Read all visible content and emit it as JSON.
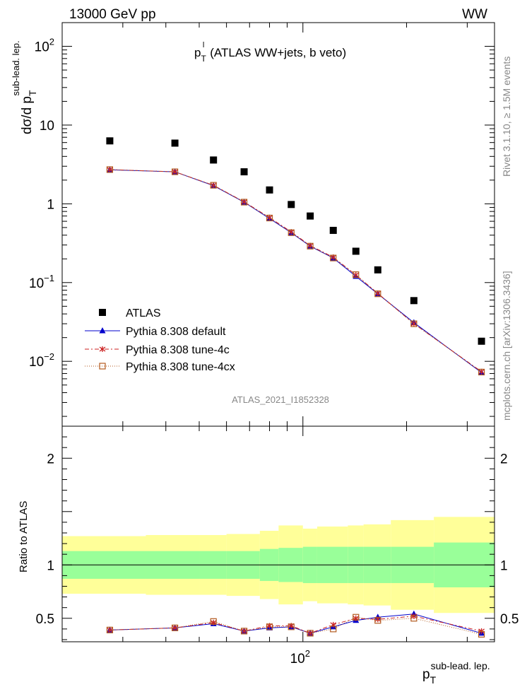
{
  "header": {
    "left": "13000 GeV pp",
    "right": "WW"
  },
  "side_labels": {
    "rivet": "Rivet 3.1.10, ≥ 1.5M events",
    "mcplots": "mcplots.cern.ch [arXiv:1306.3436]"
  },
  "plot_title": {
    "main": "p",
    "sub": "T",
    "sup": "l",
    "rest": "(ATLAS WW+jets, b veto)"
  },
  "analysis_id": "ATLAS_2021_I1852328",
  "y_axis": {
    "base": "dσ/d p",
    "sub": "T",
    "sup": "sub-lead. lep."
  },
  "x_axis": {
    "base": "p",
    "sub": "T",
    "sup": "sub-lead. lep."
  },
  "ratio_axis": {
    "label": "Ratio to ATLAS"
  },
  "main_ticks": [
    {
      "value": 100,
      "base": "10",
      "exp": "2"
    },
    {
      "value": 10,
      "base": "10",
      "exp": ""
    },
    {
      "value": 1,
      "base": "1",
      "exp": ""
    },
    {
      "value": 0.1,
      "base": "10",
      "exp": "−1"
    },
    {
      "value": 0.01,
      "base": "10",
      "exp": "−2"
    }
  ],
  "ratio_ticks": [
    {
      "value": 2,
      "label": "2"
    },
    {
      "value": 1,
      "label": "1"
    },
    {
      "value": 0.5,
      "label": "0.5"
    }
  ],
  "x_ticks": [
    {
      "value": 100,
      "base": "10",
      "exp": "2"
    }
  ],
  "legend": [
    {
      "label": "ATLAS",
      "color": "#000000",
      "marker": "square"
    },
    {
      "label": "Pythia 8.308 default",
      "color": "#0000cc",
      "marker": "triangle"
    },
    {
      "label": "Pythia 8.308 tune-4c",
      "color": "#cc2222",
      "marker": "star"
    },
    {
      "label": "Pythia 8.308 tune-4cx",
      "color": "#b35a1f",
      "marker": "opensquare"
    }
  ],
  "chart_data": {
    "type": "scatter",
    "x_scale": "log",
    "y_scale": "log",
    "xlim": [
      20,
      360
    ],
    "ylim": [
      0.0015,
      200
    ],
    "ratio_ylim": [
      0.28,
      2.3
    ],
    "x": [
      27.5,
      42.5,
      55,
      67.5,
      80,
      92.5,
      105,
      122.5,
      142.5,
      165,
      210,
      330
    ],
    "bin_edges": [
      20,
      35,
      50,
      60,
      75,
      85,
      100,
      110,
      135,
      150,
      180,
      240,
      420
    ],
    "series": [
      {
        "name": "ATLAS",
        "values": [
          6.3,
          5.9,
          3.6,
          2.55,
          1.5,
          0.98,
          0.7,
          0.46,
          0.25,
          0.145,
          0.059,
          0.018
        ]
      },
      {
        "name": "Pythia 8.308 default",
        "values": [
          2.7,
          2.55,
          1.7,
          1.05,
          0.65,
          0.43,
          0.29,
          0.205,
          0.12,
          0.072,
          0.031,
          0.0072
        ]
      },
      {
        "name": "Pythia 8.308 tune-4c",
        "values": [
          2.72,
          2.55,
          1.72,
          1.06,
          0.67,
          0.44,
          0.295,
          0.21,
          0.125,
          0.073,
          0.03,
          0.0074
        ]
      },
      {
        "name": "Pythia 8.308 tune-4cx",
        "values": [
          2.72,
          2.55,
          1.72,
          1.05,
          0.66,
          0.43,
          0.29,
          0.205,
          0.126,
          0.072,
          0.03,
          0.0073
        ]
      }
    ],
    "ratio_series": [
      {
        "name": "Pythia 8.308 default",
        "values": [
          0.39,
          0.41,
          0.45,
          0.38,
          0.41,
          0.42,
          0.36,
          0.42,
          0.48,
          0.51,
          0.54,
          0.36
        ]
      },
      {
        "name": "Pythia 8.308 tune-4c",
        "values": [
          0.39,
          0.41,
          0.46,
          0.38,
          0.43,
          0.43,
          0.36,
          0.44,
          0.5,
          0.49,
          0.52,
          0.38
        ]
      },
      {
        "name": "Pythia 8.308 tune-4cx",
        "values": [
          0.39,
          0.41,
          0.47,
          0.38,
          0.42,
          0.42,
          0.36,
          0.4,
          0.51,
          0.48,
          0.5,
          0.35
        ]
      }
    ],
    "band_inner": [
      0.13,
      0.13,
      0.13,
      0.13,
      0.15,
      0.16,
      0.17,
      0.17,
      0.17,
      0.17,
      0.17,
      0.21
    ],
    "band_outer": [
      0.27,
      0.28,
      0.28,
      0.29,
      0.32,
      0.37,
      0.34,
      0.36,
      0.37,
      0.38,
      0.42,
      0.45
    ]
  }
}
